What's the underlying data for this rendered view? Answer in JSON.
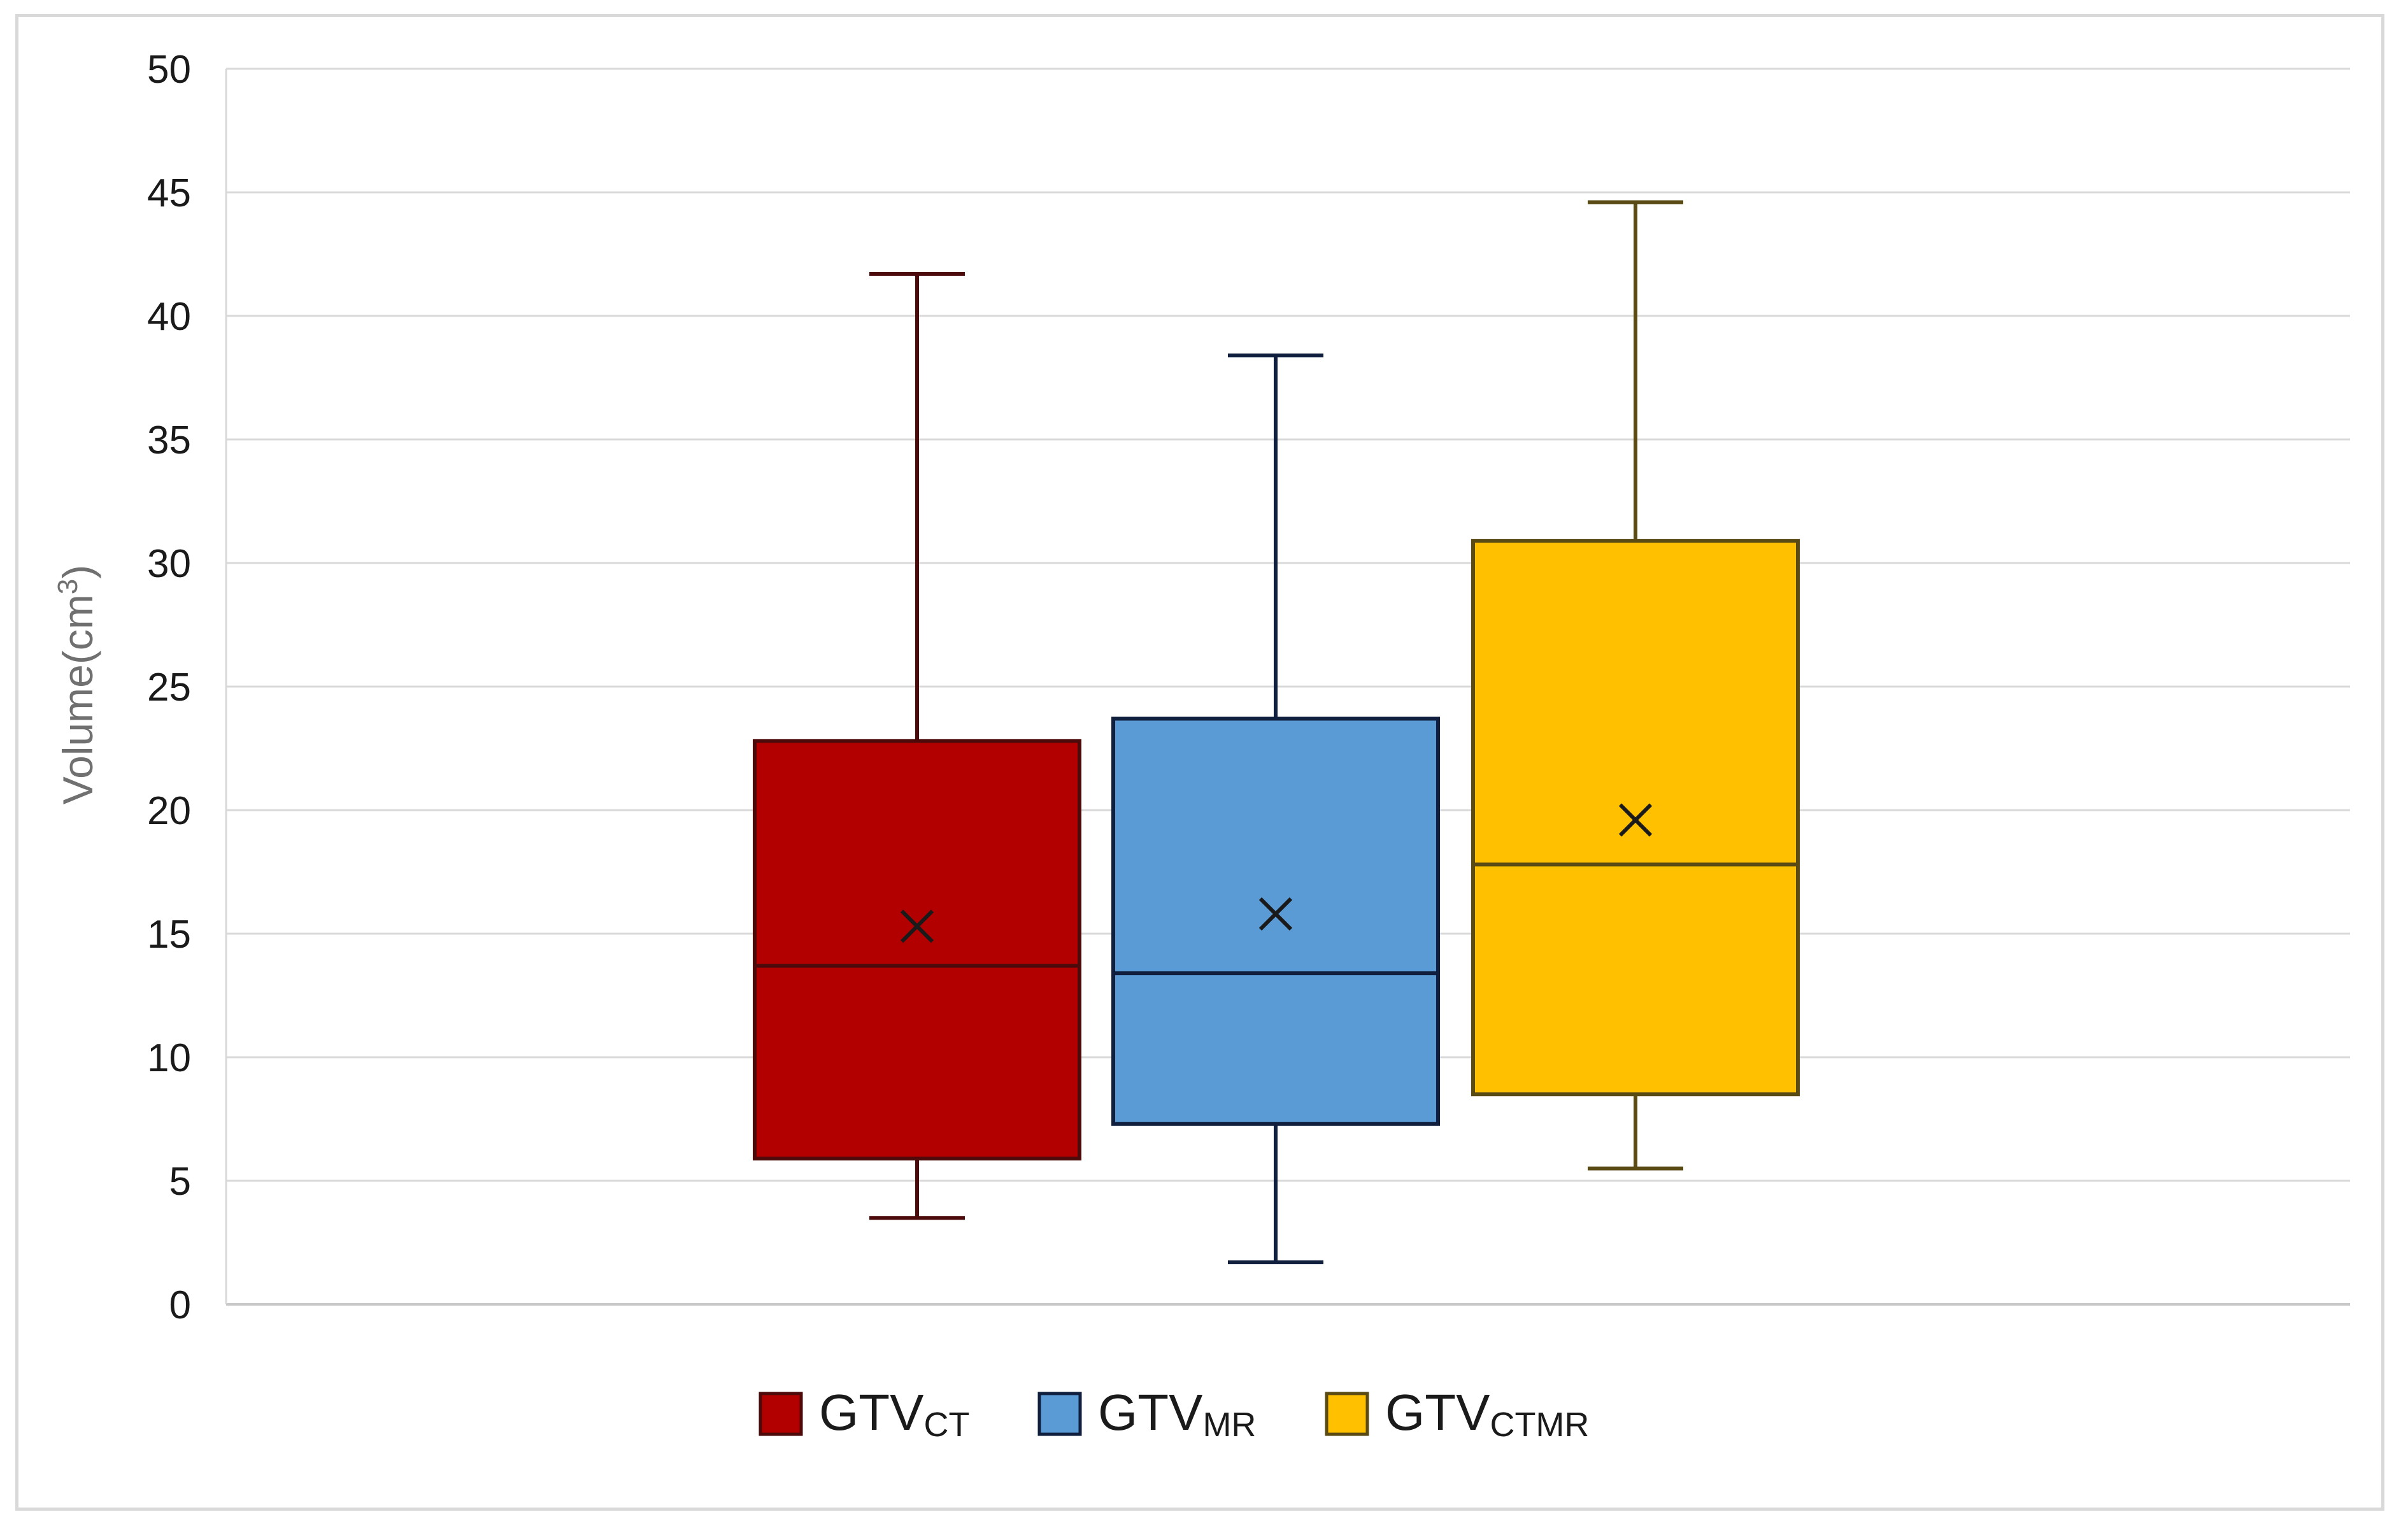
{
  "chart_data": {
    "type": "box",
    "ylabel": "Volume(cm",
    "ylabel_sup": "3",
    "ylabel_close": ")",
    "ylim": [
      0,
      50
    ],
    "yticks": [
      "0",
      "5",
      "10",
      "15",
      "20",
      "25",
      "30",
      "35",
      "40",
      "45",
      "50"
    ],
    "grid": true,
    "legend_position": "bottom",
    "series": [
      {
        "name": "GTV",
        "name_sub": "CT",
        "color": "#b20000",
        "edge": "#4d0a0a",
        "min": 3.5,
        "q1": 5.9,
        "median": 13.7,
        "q3": 22.8,
        "max": 41.7,
        "mean": 15.3
      },
      {
        "name": "GTV",
        "name_sub": "MR",
        "color": "#5b9bd5",
        "edge": "#0f1f3d",
        "min": 1.7,
        "q1": 7.3,
        "median": 13.4,
        "q3": 23.7,
        "max": 38.4,
        "mean": 15.8
      },
      {
        "name": "GTV",
        "name_sub": "CTMR",
        "color": "#ffc000",
        "edge": "#5a4a14",
        "min": 5.5,
        "q1": 8.5,
        "median": 17.8,
        "q3": 30.9,
        "max": 44.6,
        "mean": 19.6
      }
    ]
  }
}
